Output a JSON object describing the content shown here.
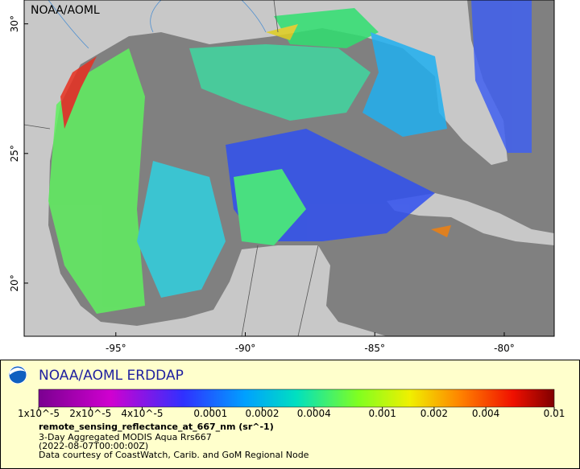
{
  "map": {
    "watermark": "NOAA/AOML",
    "lon_range": [
      -98.54,
      -78.07
    ],
    "lat_range": [
      17.95,
      30.92
    ],
    "lon_ticks": [
      {
        "value": -95,
        "label": "-95°"
      },
      {
        "value": -90,
        "label": "-90°"
      },
      {
        "value": -85,
        "label": "-85°"
      },
      {
        "value": -80,
        "label": "-80°"
      }
    ],
    "lat_ticks": [
      {
        "value": 20,
        "label": "20°"
      },
      {
        "value": 25,
        "label": "25°"
      },
      {
        "value": 30,
        "label": "30°"
      }
    ]
  },
  "legend": {
    "brand": "NOAA/AOML ERDDAP",
    "scale": "log",
    "colorbar_range": [
      1e-05,
      0.01
    ],
    "colorbar_ticks": [
      {
        "value": 1e-05,
        "label": "1x10^-5"
      },
      {
        "value": 2e-05,
        "label": "2x10^-5"
      },
      {
        "value": 4e-05,
        "label": "4x10^-5"
      },
      0.0001,
      0.0002,
      0.0004,
      0.001,
      0.002,
      0.004,
      0.01
    ],
    "variable": "remote_sensing_reflectance_at_667_nm (sr^-1)",
    "lines": [
      "3-Day Aggregated MODIS Aqua Rrs667",
      "(2022-08-07T00:00:00Z)",
      "Data courtesy of CoastWatch, Carib. and GoM Regional Node"
    ]
  }
}
